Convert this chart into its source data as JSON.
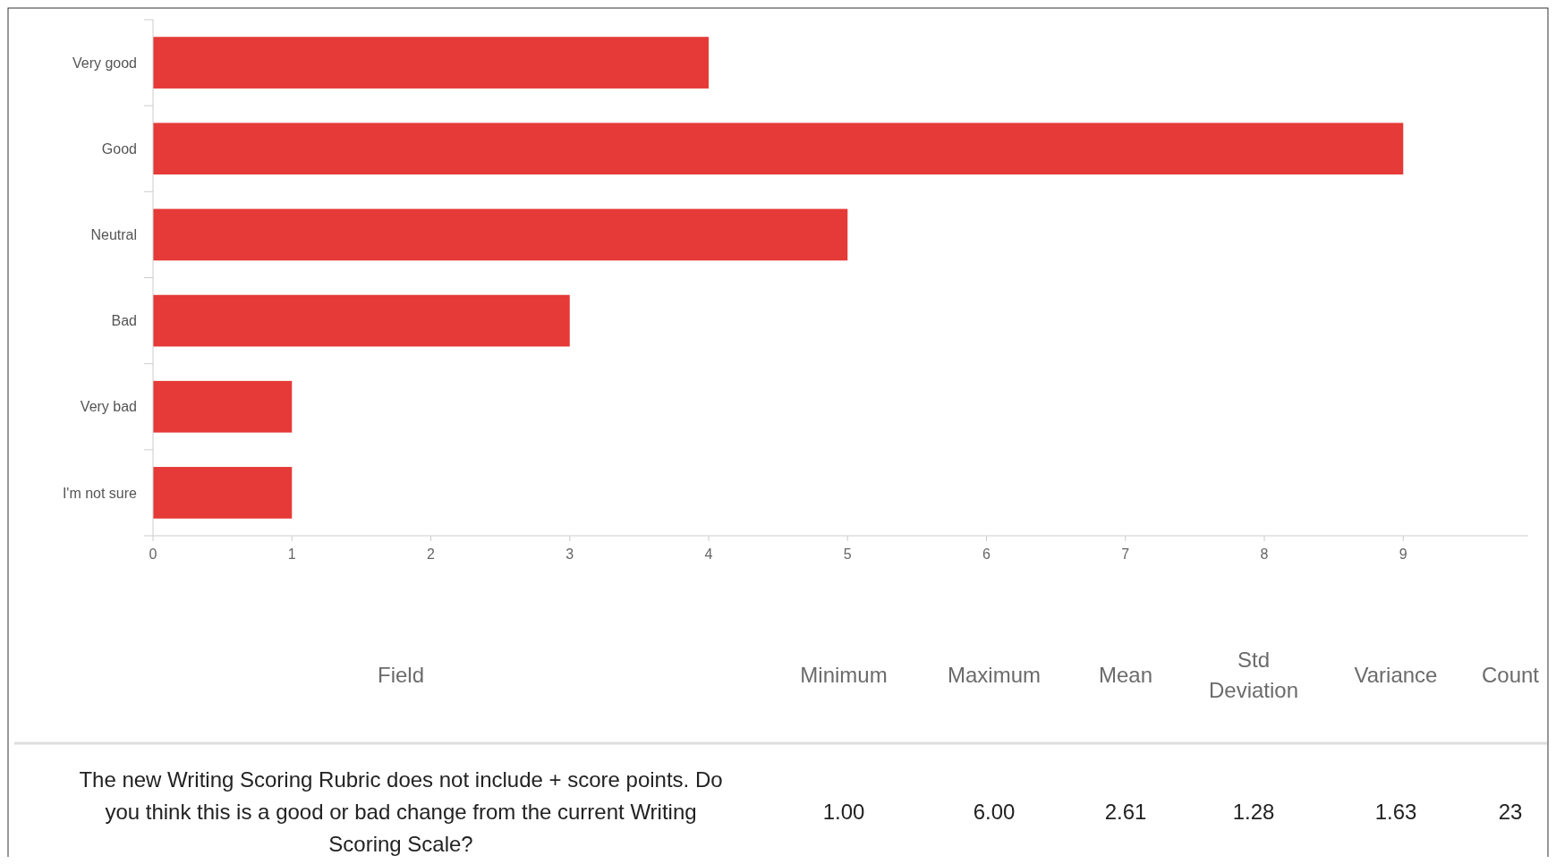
{
  "chart_data": {
    "type": "bar",
    "orientation": "horizontal",
    "categories": [
      "Very good",
      "Good",
      "Neutral",
      "Bad",
      "Very bad",
      "I'm not sure"
    ],
    "values": [
      4,
      9,
      5,
      3,
      1,
      1
    ],
    "color": "#e53a37",
    "xlim": [
      0,
      9.9
    ],
    "xticks": [
      0,
      1,
      2,
      3,
      4,
      5,
      6,
      7,
      8,
      9
    ],
    "grid": false,
    "annotations": [
      "Field",
      "Minimum",
      "Maximum",
      "Mean",
      "Std Deviation",
      "Variance",
      "Count",
      "The new Writing Scoring Rubric does not include + score points. Do you think this is a good or bad change from the current Writing Scoring Scale?",
      "1.00",
      "6.00",
      "2.61",
      "1.28",
      "1.63",
      "23"
    ]
  }
}
